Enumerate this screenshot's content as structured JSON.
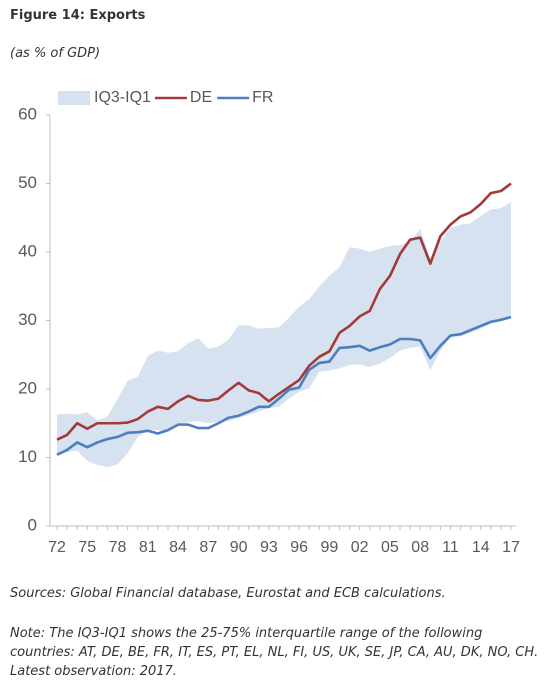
{
  "title": "Figure 14: Exports",
  "subtitle": "(as % of GDP)",
  "chart_data": {
    "type": "line",
    "categories": [
      "72",
      null,
      null,
      "75",
      null,
      null,
      "78",
      null,
      null,
      "81",
      null,
      null,
      "84",
      null,
      null,
      "87",
      null,
      null,
      "90",
      null,
      null,
      "93",
      null,
      null,
      "96",
      null,
      null,
      "99",
      null,
      null,
      "02",
      null,
      null,
      "05",
      null,
      null,
      "08",
      null,
      null,
      "11",
      null,
      null,
      "14",
      null,
      null,
      "17"
    ],
    "band": {
      "name": "IQ3-IQ1",
      "color": "#d7e2f0",
      "upper": [
        16.3,
        16.4,
        16.3,
        16.6,
        15.4,
        16.0,
        18.5,
        21.2,
        21.8,
        24.8,
        25.6,
        25.3,
        25.5,
        26.7,
        27.4,
        25.9,
        26.2,
        27.2,
        29.3,
        29.3,
        28.8,
        28.9,
        29.0,
        30.4,
        32.0,
        33.1,
        35.0,
        36.5,
        37.8,
        40.7,
        40.5,
        40.0,
        40.5,
        40.9,
        41.0,
        41.5,
        43.4,
        39.0,
        41.5,
        43.5,
        44.0,
        44.2,
        45.3,
        46.2,
        46.4,
        47.3
      ],
      "lower": [
        10.2,
        10.8,
        11.0,
        9.5,
        8.9,
        8.6,
        9.0,
        10.6,
        13.0,
        14.0,
        14.0,
        13.8,
        14.5,
        15.2,
        15.3,
        15.0,
        15.2,
        15.3,
        15.8,
        16.2,
        16.7,
        17.2,
        17.4,
        18.6,
        19.6,
        20.1,
        22.5,
        22.7,
        23.0,
        23.5,
        23.6,
        23.2,
        23.7,
        24.5,
        25.6,
        26.0,
        26.2,
        22.7,
        25.6,
        27.6,
        27.7,
        28.2,
        28.8,
        29.6,
        30.0,
        30.4
      ]
    },
    "series": [
      {
        "name": "DE",
        "color": "#a33a3a",
        "values": [
          12.6,
          13.3,
          15.0,
          14.2,
          15.0,
          15.0,
          15.0,
          15.1,
          15.6,
          16.7,
          17.4,
          17.1,
          18.2,
          19.0,
          18.4,
          18.3,
          18.6,
          19.8,
          20.9,
          19.8,
          19.4,
          18.2,
          19.3,
          20.3,
          21.3,
          23.4,
          24.7,
          25.5,
          28.2,
          29.2,
          30.6,
          31.4,
          34.6,
          36.5,
          39.7,
          41.8,
          42.1,
          38.3,
          42.3,
          44.0,
          45.2,
          45.8,
          47.0,
          48.6,
          48.9,
          50.0
        ]
      },
      {
        "name": "FR",
        "color": "#4d7fc0",
        "values": [
          10.4,
          11.1,
          12.2,
          11.5,
          12.2,
          12.7,
          13.0,
          13.6,
          13.7,
          13.9,
          13.5,
          14.0,
          14.8,
          14.8,
          14.3,
          14.3,
          15.0,
          15.8,
          16.1,
          16.7,
          17.4,
          17.4,
          18.6,
          19.9,
          20.2,
          22.8,
          23.8,
          24.0,
          26.0,
          26.1,
          26.3,
          25.6,
          26.1,
          26.5,
          27.3,
          27.3,
          27.1,
          24.5,
          26.3,
          27.8,
          28.0,
          28.6,
          29.2,
          29.8,
          30.1,
          30.5
        ]
      }
    ],
    "ylim": [
      0,
      60
    ],
    "yticks": [
      0,
      10,
      20,
      30,
      40,
      50,
      60
    ],
    "grid": false
  },
  "source": "Sources: Global Financial database, Eurostat and ECB calculations.",
  "note": "Note: The IQ3-IQ1 shows the 25-75% interquartile range of the following countries: AT, DE, BE, FR, IT, ES, PT, EL, NL, FI, US, UK, SE, JP, CA, AU, DK, NO, CH. Latest observation: 2017."
}
